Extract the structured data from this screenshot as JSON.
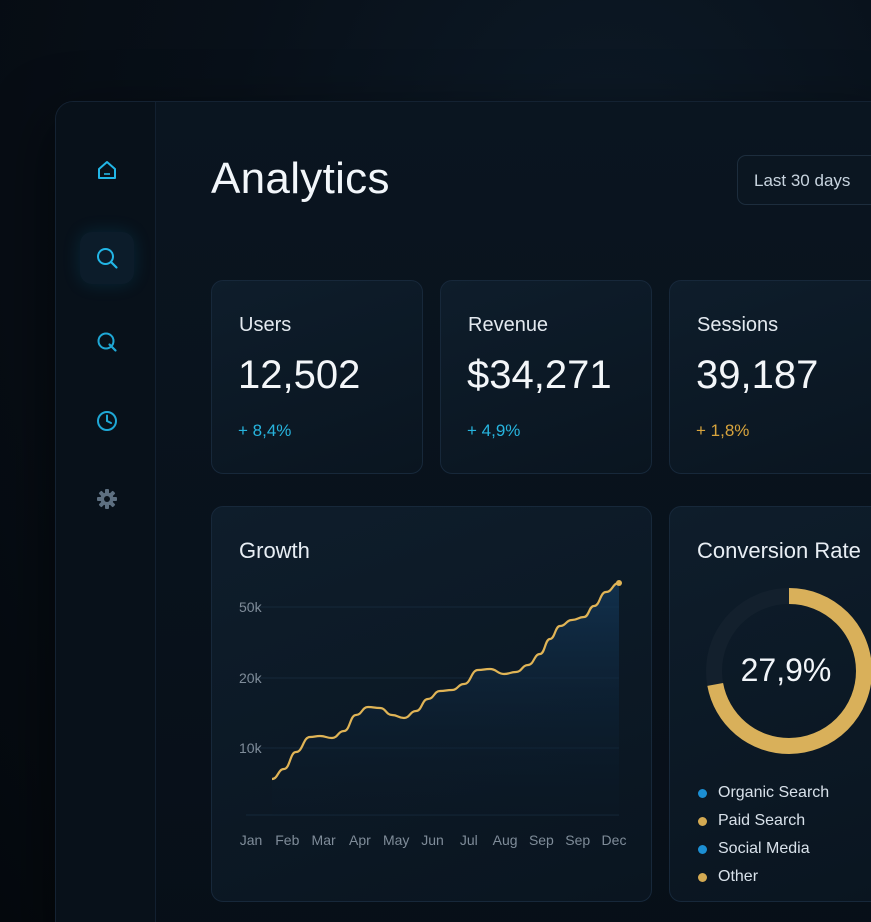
{
  "page": {
    "title": "Analytics",
    "range_label": "Last 30 days"
  },
  "sidebar": {
    "items": [
      {
        "icon": "home-icon"
      },
      {
        "icon": "search-icon"
      },
      {
        "icon": "explore-icon"
      },
      {
        "icon": "clock-icon"
      },
      {
        "icon": "gear-icon"
      }
    ]
  },
  "stats": [
    {
      "label": "Users",
      "value": "12,502",
      "delta": "+ 8,4%",
      "delta_color": "#27b4de"
    },
    {
      "label": "Revenue",
      "value": "$34,271",
      "delta": "+ 4,9%",
      "delta_color": "#27b4de"
    },
    {
      "label": "Sessions",
      "value": "39,187",
      "delta": "+ 1,8%",
      "delta_color": "#d8a43d"
    }
  ],
  "growth": {
    "title": "Growth",
    "chart_data": {
      "type": "line",
      "categories": [
        "Jan",
        "Feb",
        "Mar",
        "Apr",
        "May",
        "Jun",
        "Jul",
        "Aug",
        "Sep",
        "Sep",
        "Dec"
      ],
      "y_ticks": [
        "10k",
        "20k",
        "50k"
      ],
      "line_color": "#e0b456"
    }
  },
  "conversion": {
    "title": "Conversion Rate",
    "value": "27,9%",
    "fraction": 0.721,
    "ring_color": "#d9b05a",
    "track_color": "#13202d",
    "legend": [
      {
        "label": "Organic Search",
        "color": "#1c8fd3"
      },
      {
        "label": "Paid Search",
        "color": "#d4aa52"
      },
      {
        "label": "Social Media",
        "color": "#1c8fd3"
      },
      {
        "label": "Other",
        "color": "#d4aa52"
      }
    ]
  }
}
